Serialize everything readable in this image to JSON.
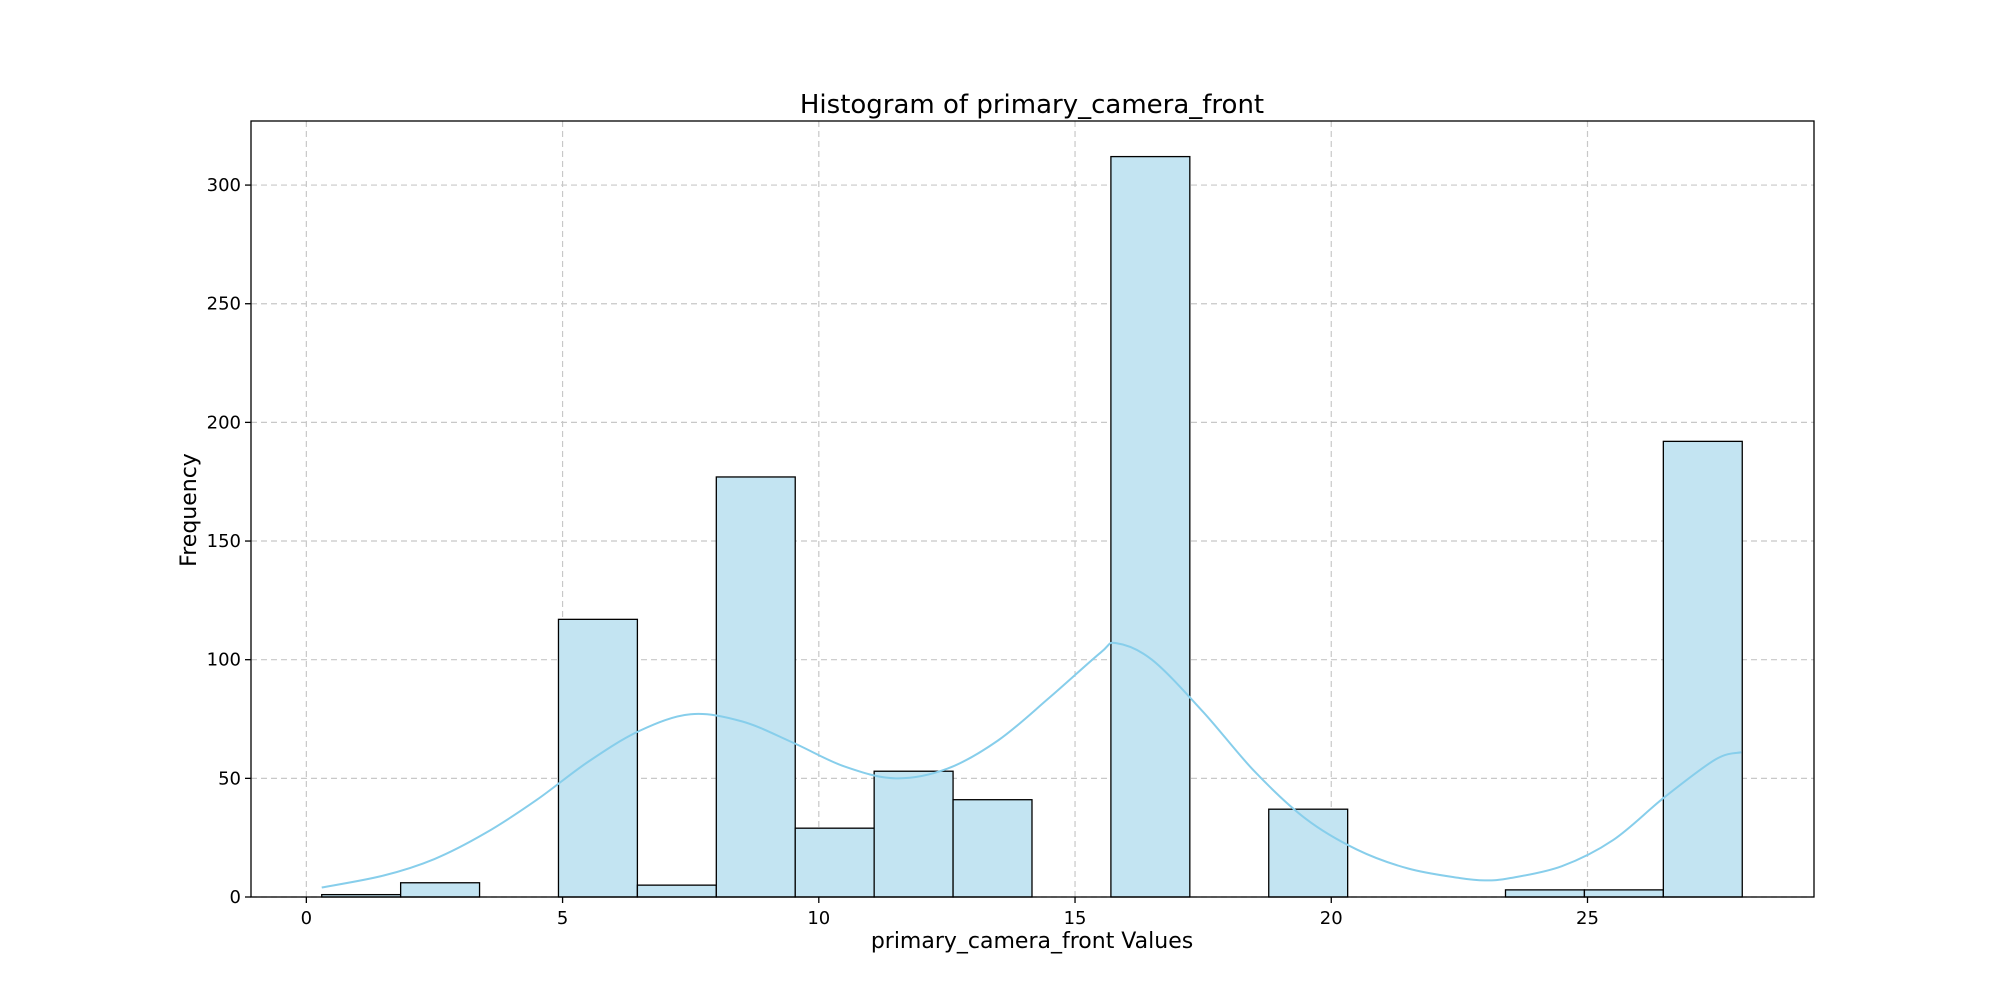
{
  "chart_data": {
    "type": "bar",
    "title": "Histogram of primary_camera_front",
    "xlabel": "primary_camera_front Values",
    "ylabel": "Frequency",
    "xlim": [
      -1.08,
      29.42
    ],
    "ylim": [
      0,
      327
    ],
    "xticks": [
      0,
      5,
      10,
      15,
      20,
      25
    ],
    "yticks": [
      0,
      50,
      100,
      150,
      200,
      250,
      300
    ],
    "grid": true,
    "bin_edges": [
      0.3,
      1.84,
      3.38,
      4.92,
      6.46,
      8.0,
      9.54,
      11.08,
      12.62,
      14.16,
      15.7,
      17.24,
      18.78,
      20.32,
      21.86,
      23.4,
      24.94,
      26.48,
      28.02
    ],
    "values": [
      1,
      6,
      0,
      117,
      5,
      177,
      29,
      53,
      41,
      0,
      312,
      0,
      37,
      0,
      0,
      3,
      3,
      192
    ],
    "kde": {
      "x": [
        0.3,
        1.5,
        2.5,
        3.5,
        4.5,
        5.5,
        6.5,
        7.5,
        8.5,
        9.5,
        10.5,
        11.5,
        12.5,
        13.5,
        14.5,
        15.5,
        15.8,
        16.5,
        17.5,
        18.5,
        19.5,
        20.5,
        21.5,
        22.5,
        23.0,
        23.5,
        24.5,
        25.5,
        26.5,
        27.5,
        28.0
      ],
      "y": [
        4,
        9,
        16,
        27,
        41,
        57,
        70,
        77,
        74,
        65,
        55,
        50,
        54,
        66,
        84,
        103,
        107,
        100,
        78,
        53,
        33,
        20,
        12,
        8,
        7,
        8,
        13,
        24,
        42,
        58,
        61
      ]
    },
    "colors": {
      "bar_fill": "#c3e4f2",
      "bar_edge": "#000000",
      "kde": "#87ceeb",
      "grid": "#c8c8c8"
    }
  }
}
